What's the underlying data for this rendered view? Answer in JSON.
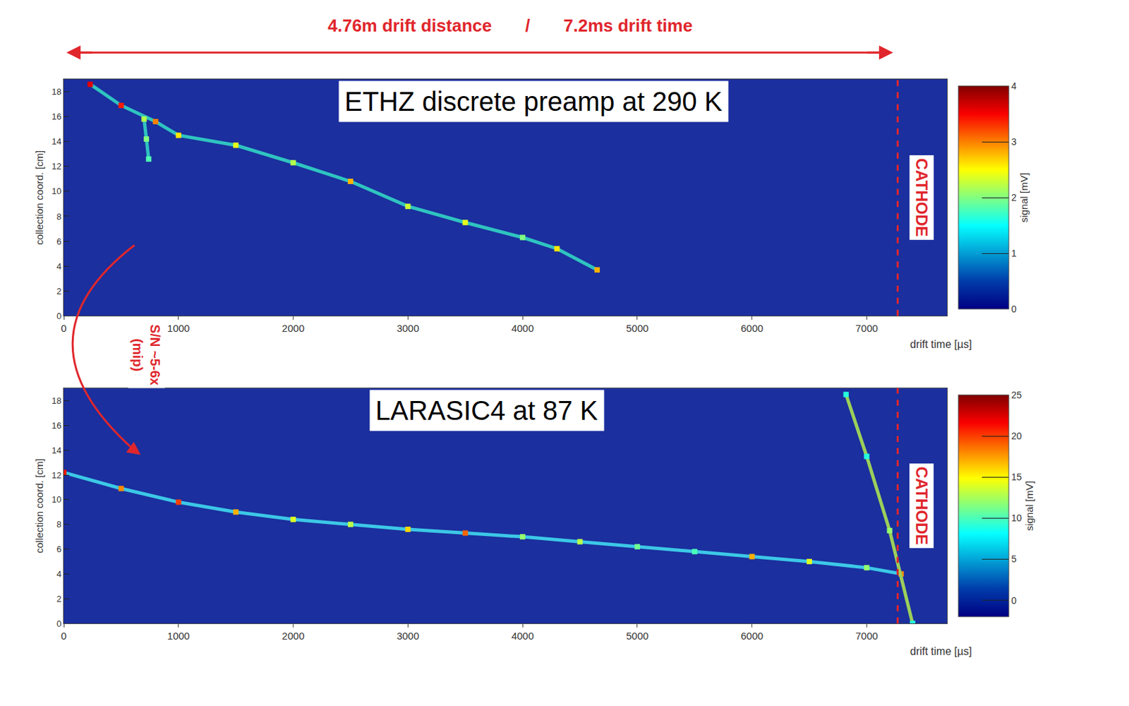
{
  "header": {
    "texts": [
      "4.76m drift distance",
      "/",
      "7.2ms drift time"
    ]
  },
  "annotation": {
    "lines": [
      "S/N ~5-6x",
      "(mip)"
    ]
  },
  "chart_data": [
    {
      "type": "scatter",
      "title": "ETHZ discrete preamp at 290 K",
      "x_label": "drift time [µs]",
      "y_label": "collection coord. [cm]",
      "xlim": [
        0,
        7700
      ],
      "xticks": [
        0,
        1000,
        2000,
        3000,
        4000,
        5000,
        6000,
        7000
      ],
      "ylim": [
        0,
        19
      ],
      "yticks": [
        0,
        2,
        4,
        6,
        8,
        10,
        12,
        14,
        16,
        18
      ],
      "grid": false,
      "series": [
        {
          "color": "#2fc4c0",
          "x": [
            230,
            500,
            800,
            1000,
            1500,
            2000,
            2500,
            3000,
            3500,
            4000,
            4300,
            4650
          ],
          "y": [
            18.6,
            16.9,
            15.6,
            14.5,
            13.7,
            12.3,
            10.8,
            8.8,
            7.5,
            6.3,
            5.4,
            3.7
          ],
          "signal": [
            3.6,
            3.4,
            3.0,
            2.6,
            2.4,
            2.2,
            2.8,
            2.3,
            2.4,
            2.0,
            2.6,
            2.8
          ]
        },
        {
          "color": "#2fc4c0",
          "x": [
            700,
            720,
            740
          ],
          "y": [
            15.8,
            14.2,
            12.6
          ],
          "signal": [
            2.2,
            2.0,
            1.8
          ]
        }
      ],
      "colorbar": {
        "range": [
          0,
          4
        ],
        "ticks": [
          0,
          1,
          2,
          3,
          4
        ],
        "title": "signal [mV]"
      },
      "cathode": {
        "x": 7270,
        "label": "CATHODE"
      }
    },
    {
      "type": "scatter",
      "title": "LARASIC4 at 87 K",
      "x_label": "drift time [µs]",
      "y_label": "collection coord. [cm]",
      "xlim": [
        0,
        7700
      ],
      "xticks": [
        0,
        1000,
        2000,
        3000,
        4000,
        5000,
        6000,
        7000
      ],
      "ylim": [
        0,
        19
      ],
      "yticks": [
        0,
        2,
        4,
        6,
        8,
        10,
        12,
        14,
        16,
        18
      ],
      "grid": false,
      "series": [
        {
          "color": "#3cc8e6",
          "x": [
            0,
            500,
            1000,
            1500,
            2000,
            2500,
            3000,
            3500,
            4000,
            4500,
            5000,
            5500,
            6000,
            6500,
            7000,
            7300
          ],
          "y": [
            12.2,
            10.9,
            9.8,
            9.0,
            8.4,
            8.0,
            7.6,
            7.3,
            7.0,
            6.6,
            6.2,
            5.8,
            5.4,
            5.0,
            4.5,
            4.0
          ],
          "signal": [
            21,
            18,
            20,
            17,
            14,
            13,
            16,
            19,
            12,
            13,
            11,
            10,
            17,
            14,
            12,
            18
          ]
        },
        {
          "color": "#9ccf5a",
          "x": [
            6820,
            7000,
            7200,
            7400
          ],
          "y": [
            18.5,
            13.5,
            7.5,
            0
          ],
          "signal": [
            9,
            9,
            12,
            9
          ]
        }
      ],
      "colorbar": {
        "range": [
          -2,
          25
        ],
        "ticks": [
          0,
          5,
          10,
          15,
          20,
          25
        ],
        "title": "signal [mV]"
      },
      "cathode": {
        "x": 7270,
        "label": "CATHODE"
      }
    }
  ]
}
